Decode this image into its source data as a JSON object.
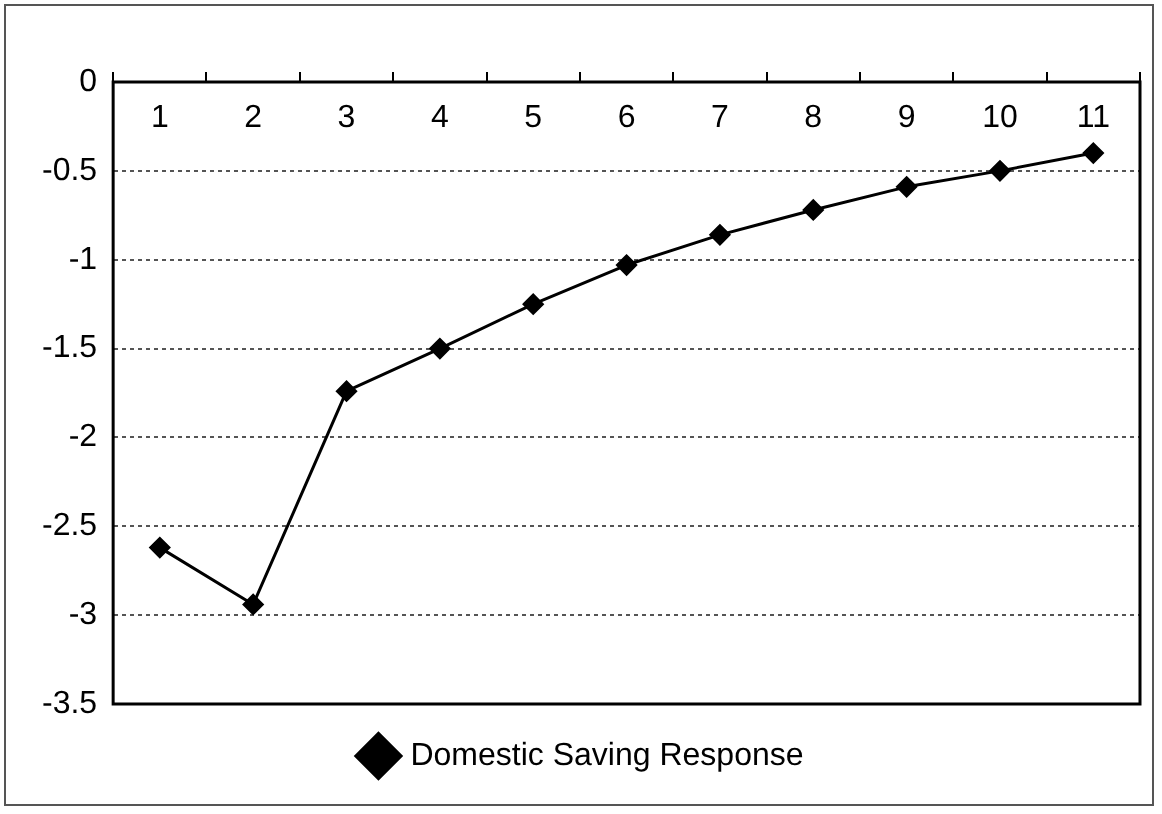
{
  "chart_data": {
    "type": "line",
    "categories": [
      "1",
      "2",
      "3",
      "4",
      "5",
      "6",
      "7",
      "8",
      "9",
      "10",
      "11"
    ],
    "series": [
      {
        "name": "Domestic Saving Response",
        "color": "#000000",
        "values": [
          -2.62,
          -2.94,
          -1.74,
          -1.5,
          -1.25,
          -1.03,
          -0.86,
          -0.72,
          -0.59,
          -0.5,
          -0.4
        ]
      }
    ],
    "ylim": [
      -3.5,
      0
    ],
    "yticks": [
      -3.5,
      -3,
      -2.5,
      -2,
      -1.5,
      -1,
      -0.5,
      0
    ],
    "grid": "y",
    "legend": "bottom",
    "marker": "diamond",
    "line_style": "solid"
  }
}
